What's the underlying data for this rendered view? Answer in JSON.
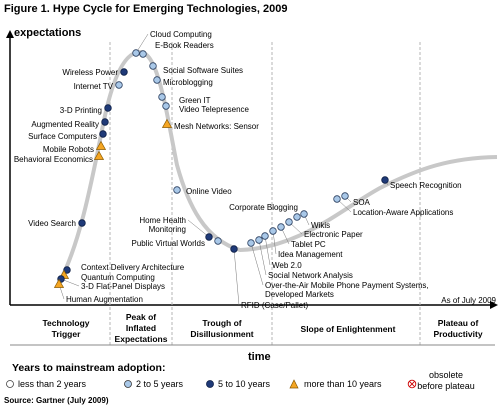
{
  "title": "Figure 1. Hype Cycle for Emerging Technologies, 2009",
  "y_axis_label": "expectations",
  "x_axis_label": "time",
  "as_of": "As of July 2009",
  "source": "Source: Gartner (July 2009)",
  "phases": [
    "Technology Trigger",
    "Peak of Inflated Expectations",
    "Trough of Disillusionment",
    "Slope of Enlightenment",
    "Plateau of Productivity"
  ],
  "legend": {
    "title": "Years to mainstream adoption:",
    "items": [
      {
        "label": "less than 2 years",
        "marker": "circle-white"
      },
      {
        "label": "2 to 5 years",
        "marker": "circle-lightblue"
      },
      {
        "label": "5 to 10 years",
        "marker": "circle-navy"
      },
      {
        "label": "more than 10 years",
        "marker": "triangle-orange"
      },
      {
        "label": "obsolete before plateau",
        "marker": "circle-x"
      }
    ]
  },
  "colors": {
    "curve": "#c8c8c8",
    "navy": "#1f3a78",
    "lightblue": "#a9c8e8",
    "orange": "#f5a623",
    "axis": "#000000",
    "grid": "#b5b5b5"
  },
  "technologies": [
    {
      "name": "Cloud Computing",
      "category": "2 to 5 years"
    },
    {
      "name": "E-Book Readers",
      "category": "2 to 5 years"
    },
    {
      "name": "Social Software Suites",
      "category": "2 to 5 years"
    },
    {
      "name": "Microblogging",
      "category": "2 to 5 years"
    },
    {
      "name": "Wireless Power",
      "category": "5 to 10 years"
    },
    {
      "name": "Internet TV",
      "category": "2 to 5 years"
    },
    {
      "name": "Green IT",
      "category": "2 to 5 years"
    },
    {
      "name": "Video Telepresence",
      "category": "2 to 5 years"
    },
    {
      "name": "3-D Printing",
      "category": "5 to 10 years"
    },
    {
      "name": "Mesh Networks: Sensor",
      "category": "more than 10 years"
    },
    {
      "name": "Augmented Reality",
      "category": "5 to 10 years"
    },
    {
      "name": "Surface Computers",
      "category": "5 to 10 years"
    },
    {
      "name": "Mobile Robots",
      "category": "more than 10 years"
    },
    {
      "name": "Behavioral Economics",
      "category": "more than 10 years"
    },
    {
      "name": "Online Video",
      "category": "2 to 5 years"
    },
    {
      "name": "Video Search",
      "category": "5 to 10 years"
    },
    {
      "name": "Home Health Monitoring",
      "category": "5 to 10 years"
    },
    {
      "name": "Public Virtual Worlds",
      "category": "2 to 5 years"
    },
    {
      "name": "Corporate Blogging",
      "category": "2 to 5 years"
    },
    {
      "name": "Wikis",
      "category": "2 to 5 years"
    },
    {
      "name": "Electronic Paper",
      "category": "2 to 5 years"
    },
    {
      "name": "Tablet PC",
      "category": "2 to 5 years"
    },
    {
      "name": "Idea Management",
      "category": "2 to 5 years"
    },
    {
      "name": "Web 2.0",
      "category": "2 to 5 years"
    },
    {
      "name": "Social Network Analysis",
      "category": "2 to 5 years"
    },
    {
      "name": "Over-the-Air Mobile Phone Payment Systems, Developed Markets",
      "category": "2 to 5 years"
    },
    {
      "name": "RFID (Case/Pallet)",
      "category": "5 to 10 years"
    },
    {
      "name": "SOA",
      "category": "2 to 5 years"
    },
    {
      "name": "Location-Aware Applications",
      "category": "2 to 5 years"
    },
    {
      "name": "Speech Recognition",
      "category": "5 to 10 years"
    },
    {
      "name": "Context Delivery Architecture",
      "category": "5 to 10 years"
    },
    {
      "name": "Quantum Computing",
      "category": "more than 10 years"
    },
    {
      "name": "3-D Flat-Panel Displays",
      "category": "5 to 10 years"
    },
    {
      "name": "Human Augmentation",
      "category": "more than 10 years"
    }
  ]
}
